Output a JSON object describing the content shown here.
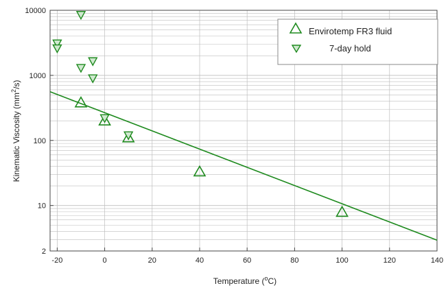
{
  "chart_data": {
    "type": "scatter",
    "title": "",
    "xlabel_main": "Temperature (",
    "xlabel_sup": "o",
    "xlabel_tail": "C)",
    "ylabel_main": "Kinematic Viscosity (mm",
    "ylabel_sup": "2",
    "ylabel_tail": "/s)",
    "xlim": [
      -23,
      140
    ],
    "ylim": [
      2,
      10000
    ],
    "yscale": "log",
    "x_ticks": [
      -20,
      0,
      20,
      40,
      60,
      80,
      100,
      120,
      140
    ],
    "y_ticks": [
      2,
      10,
      100,
      1000,
      10000
    ],
    "grid": true,
    "legend_position": "top-right",
    "colors": {
      "series": "#1e8a1e",
      "grid": "#bdbdbd",
      "frame": "#444444"
    },
    "series": [
      {
        "name": "Envirotemp FR3 fluid",
        "marker": "triangle-up",
        "points": [
          {
            "x": -10,
            "y": 380
          },
          {
            "x": 0,
            "y": 200
          },
          {
            "x": 10,
            "y": 110
          },
          {
            "x": 40,
            "y": 33
          },
          {
            "x": 100,
            "y": 7.9
          }
        ]
      },
      {
        "name": "7-day hold",
        "marker": "triangle-down",
        "points": [
          {
            "x": -20,
            "y": 3100
          },
          {
            "x": -20,
            "y": 2600
          },
          {
            "x": -10,
            "y": 8500
          },
          {
            "x": -10,
            "y": 1300
          },
          {
            "x": -5,
            "y": 1650
          },
          {
            "x": -5,
            "y": 900
          },
          {
            "x": 0,
            "y": 220
          },
          {
            "x": 10,
            "y": 120
          }
        ]
      }
    ],
    "fit_line": {
      "x": [
        -23,
        140
      ],
      "y": [
        560,
        2.93
      ]
    }
  }
}
